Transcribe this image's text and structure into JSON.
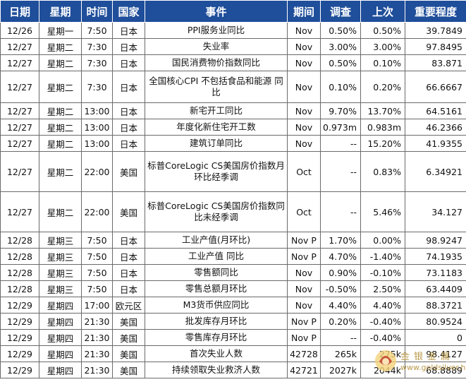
{
  "headers": [
    "日期",
    "星期",
    "时间",
    "国家",
    "事件",
    "期间",
    "调查",
    "上次",
    "重要程度"
  ],
  "rows": [
    [
      "12/26",
      "星期一",
      "7:50",
      "日本",
      "PPI服务业同比",
      "Nov",
      "0.50%",
      "0.50%",
      "39.7849"
    ],
    [
      "12/27",
      "星期二",
      "7:30",
      "日本",
      "失业率",
      "Nov",
      "3.00%",
      "3.00%",
      "97.8495"
    ],
    [
      "12/27",
      "星期二",
      "7:30",
      "日本",
      "国民消费物价指数同比",
      "Nov",
      "0.50%",
      "0.10%",
      "83.871"
    ],
    [
      "12/27",
      "星期二",
      "7:30",
      "日本",
      "全国核心CPI 不包括食品和能源 同比",
      "Nov",
      "0.10%",
      "0.20%",
      "66.6667"
    ],
    [
      "12/27",
      "星期二",
      "13:00",
      "日本",
      "新宅开工同比",
      "Nov",
      "9.70%",
      "13.70%",
      "64.5161"
    ],
    [
      "12/27",
      "星期二",
      "13:00",
      "日本",
      "年度化新住宅开工数",
      "Nov",
      "0.973m",
      "0.983m",
      "46.2366"
    ],
    [
      "12/27",
      "星期二",
      "13:00",
      "日本",
      "建筑订单同比",
      "Nov",
      "--",
      "15.20%",
      "41.9355"
    ],
    [
      "12/27",
      "星期二",
      "22:00",
      "美国",
      "标普CoreLogic CS美国房价指数月环比经季调",
      "Oct",
      "--",
      "0.83%",
      "6.34921"
    ],
    [
      "12/27",
      "星期二",
      "22:00",
      "美国",
      "标普CoreLogic CS美国房价指数同比未经季调",
      "Oct",
      "--",
      "5.46%",
      "34.127"
    ],
    [
      "12/28",
      "星期三",
      "7:50",
      "日本",
      "工业产值(月环比)",
      "Nov P",
      "1.70%",
      "0.00%",
      "98.9247"
    ],
    [
      "12/28",
      "星期三",
      "7:50",
      "日本",
      "工业产值 同比",
      "Nov P",
      "4.70%",
      "-1.40%",
      "74.1935"
    ],
    [
      "12/28",
      "星期三",
      "7:50",
      "日本",
      "零售额同比",
      "Nov",
      "0.90%",
      "-0.10%",
      "73.1183"
    ],
    [
      "12/28",
      "星期三",
      "7:50",
      "日本",
      "零售总额月环比",
      "Nov",
      "-0.50%",
      "2.50%",
      "63.4409"
    ],
    [
      "12/29",
      "星期四",
      "17:00",
      "欧元区",
      "M3货币供应同比",
      "Nov",
      "4.40%",
      "4.40%",
      "88.3721"
    ],
    [
      "12/29",
      "星期四",
      "21:30",
      "美国",
      "批发库存月环比",
      "Nov P",
      "0.20%",
      "-0.40%",
      "80.9524"
    ],
    [
      "12/29",
      "星期四",
      "21:30",
      "美国",
      "零售库存月环比",
      "Nov P",
      "--",
      "-0.40%",
      "0"
    ],
    [
      "12/29",
      "星期四",
      "21:30",
      "美国",
      "首次失业人数",
      "42728",
      "265k",
      "275k",
      "98.4127"
    ],
    [
      "12/29",
      "星期四",
      "21:30",
      "美国",
      "持续领取失业救济人数",
      "42721",
      "2027k",
      "2044k",
      "68.8889"
    ]
  ],
  "watermark": {
    "brand": "金银金属",
    "url": "www.goldsilver.hk"
  }
}
